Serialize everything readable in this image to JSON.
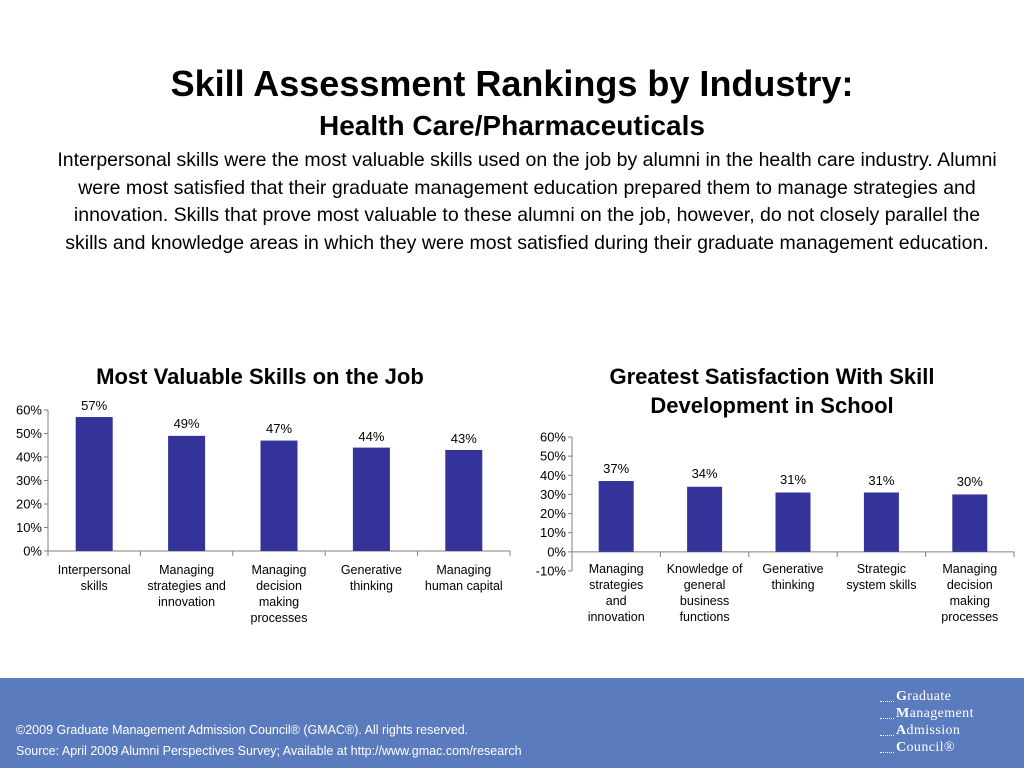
{
  "header": {
    "title": "Skill Assessment Rankings by Industry:",
    "subtitle": "Health Care/Pharmaceuticals",
    "summary": "Interpersonal skills were the most valuable skills used on the job by alumni in the health care industry. Alumni were most satisfied that their graduate management education prepared them to manage strategies and innovation. Skills that prove most valuable to these alumni on the job, however, do not closely parallel the skills and knowledge areas in which they were most satisfied during their graduate management education."
  },
  "chart_data": [
    {
      "type": "bar",
      "title": "Most Valuable Skills on the Job",
      "categories": [
        [
          "Interpersonal",
          "skills"
        ],
        [
          "Managing",
          "strategies and",
          "innovation"
        ],
        [
          "Managing",
          "decision",
          "making",
          "processes"
        ],
        [
          "Generative",
          "thinking"
        ],
        [
          "Managing",
          "human capital"
        ]
      ],
      "values": [
        57,
        49,
        47,
        44,
        43
      ],
      "data_labels": [
        "57%",
        "49%",
        "47%",
        "44%",
        "43%"
      ],
      "ylim": [
        0,
        60
      ],
      "yticks": [
        0,
        10,
        20,
        30,
        40,
        50,
        60
      ],
      "ytick_labels": [
        "0%",
        "10%",
        "20%",
        "30%",
        "40%",
        "50%",
        "60%"
      ],
      "bar_color": "#333399",
      "grid": false,
      "legend": "none"
    },
    {
      "type": "bar",
      "title": "Greatest Satisfaction With Skill Development in School",
      "categories": [
        [
          "Managing",
          "strategies",
          "and",
          "innovation"
        ],
        [
          "Knowledge of",
          "general",
          "business",
          "functions"
        ],
        [
          "Generative",
          "thinking"
        ],
        [
          "Strategic",
          "system skills"
        ],
        [
          "Managing",
          "decision",
          "making",
          "processes"
        ]
      ],
      "values": [
        37,
        34,
        31,
        31,
        30
      ],
      "data_labels": [
        "37%",
        "34%",
        "31%",
        "31%",
        "30%"
      ],
      "ylim": [
        -10,
        60
      ],
      "yticks": [
        -10,
        0,
        10,
        20,
        30,
        40,
        50,
        60
      ],
      "ytick_labels": [
        "-10%",
        "0%",
        "10%",
        "20%",
        "30%",
        "40%",
        "50%",
        "60%"
      ],
      "bar_color": "#333399",
      "grid": false,
      "legend": "none"
    }
  ],
  "footer": {
    "copyright": "©2009 Graduate Management Admission Council® (GMAC®). All rights reserved.",
    "source": "Source: April 2009 Alumni Perspectives Survey; Available at http://www.gmac.com/research",
    "logo": [
      {
        "initial": "G",
        "rest": "raduate"
      },
      {
        "initial": "M",
        "rest": "anagement"
      },
      {
        "initial": "A",
        "rest": "dmission"
      },
      {
        "initial": "C",
        "rest": "ouncil®"
      }
    ]
  }
}
